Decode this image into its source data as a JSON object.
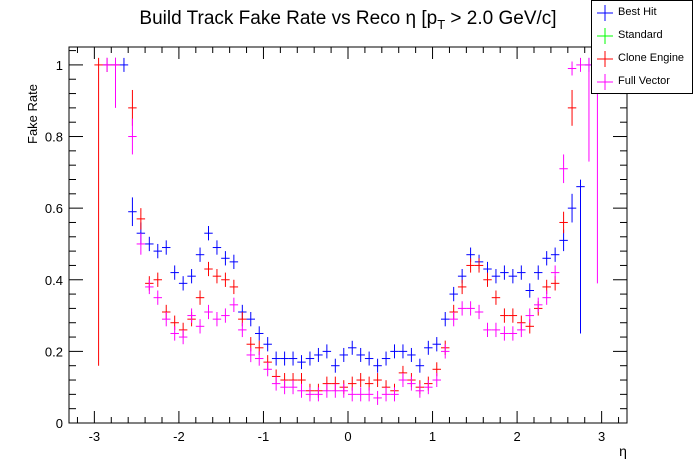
{
  "chart_data": {
    "type": "scatter",
    "title": "Build Track Fake Rate vs Reco η [p",
    "title_sub": "T",
    "title_tail": " > 2.0 GeV/c]",
    "xlabel": "η",
    "ylabel": "Fake Rate",
    "xlim": [
      -3.3,
      3.3
    ],
    "ylim": [
      0,
      1.05
    ],
    "x_ticks": [
      "-3",
      "-2",
      "-1",
      "0",
      "1",
      "2",
      "3"
    ],
    "y_ticks": [
      "0",
      "0.2",
      "0.4",
      "0.6",
      "0.8",
      "1"
    ],
    "grid": false,
    "legend_position": "top-right",
    "series": [
      {
        "name": "Best Hit",
        "color": "#0000ff",
        "x": [
          -2.85,
          -2.75,
          -2.65,
          -2.55,
          -2.45,
          -2.35,
          -2.25,
          -2.15,
          -2.05,
          -1.95,
          -1.85,
          -1.75,
          -1.65,
          -1.55,
          -1.45,
          -1.35,
          -1.25,
          -1.15,
          -1.05,
          -0.95,
          -0.85,
          -0.75,
          -0.65,
          -0.55,
          -0.45,
          -0.35,
          -0.25,
          -0.15,
          -0.05,
          0.05,
          0.15,
          0.25,
          0.35,
          0.45,
          0.55,
          0.65,
          0.75,
          0.85,
          0.95,
          1.05,
          1.15,
          1.25,
          1.35,
          1.45,
          1.55,
          1.65,
          1.75,
          1.85,
          1.95,
          2.05,
          2.15,
          2.25,
          2.35,
          2.45,
          2.55,
          2.65,
          2.75,
          2.85
        ],
        "y": [
          1.0,
          1.0,
          1.0,
          0.59,
          0.53,
          0.5,
          0.48,
          0.49,
          0.42,
          0.39,
          0.41,
          0.47,
          0.53,
          0.49,
          0.46,
          0.45,
          0.31,
          0.29,
          0.25,
          0.22,
          0.18,
          0.18,
          0.18,
          0.17,
          0.18,
          0.19,
          0.2,
          0.16,
          0.19,
          0.21,
          0.19,
          0.18,
          0.16,
          0.18,
          0.2,
          0.2,
          0.19,
          0.16,
          0.21,
          0.22,
          0.29,
          0.36,
          0.41,
          0.47,
          0.45,
          0.43,
          0.41,
          0.42,
          0.41,
          0.42,
          0.37,
          0.42,
          0.46,
          0.47,
          0.51,
          0.6,
          0.66,
          1.0
        ],
        "y_low_err": [
          0.0,
          0.0,
          0.0,
          0.04,
          0.03,
          0.02,
          0.02,
          0.02,
          0.02,
          0.02,
          0.02,
          0.02,
          0.02,
          0.02,
          0.02,
          0.02,
          0.02,
          0.02,
          0.02,
          0.02,
          0.01,
          0.01,
          0.01,
          0.01,
          0.01,
          0.01,
          0.01,
          0.01,
          0.01,
          0.01,
          0.01,
          0.01,
          0.01,
          0.01,
          0.01,
          0.01,
          0.01,
          0.01,
          0.01,
          0.02,
          0.02,
          0.02,
          0.02,
          0.02,
          0.02,
          0.02,
          0.02,
          0.02,
          0.02,
          0.02,
          0.02,
          0.02,
          0.02,
          0.02,
          0.03,
          0.04,
          0.41,
          0.0
        ],
        "y_high_err": [
          0.0,
          0.0,
          0.0,
          0.04,
          0.03,
          0.02,
          0.02,
          0.02,
          0.02,
          0.02,
          0.02,
          0.02,
          0.02,
          0.02,
          0.02,
          0.02,
          0.02,
          0.02,
          0.02,
          0.02,
          0.01,
          0.01,
          0.01,
          0.01,
          0.01,
          0.01,
          0.01,
          0.01,
          0.01,
          0.01,
          0.01,
          0.01,
          0.01,
          0.01,
          0.01,
          0.01,
          0.01,
          0.01,
          0.01,
          0.02,
          0.02,
          0.02,
          0.02,
          0.02,
          0.02,
          0.02,
          0.02,
          0.02,
          0.02,
          0.02,
          0.02,
          0.02,
          0.02,
          0.02,
          0.03,
          0.04,
          0.0,
          0.0
        ]
      },
      {
        "name": "Standard",
        "color": "#00ff00",
        "x": [],
        "y": []
      },
      {
        "name": "Clone Engine",
        "color": "#ff0000",
        "x": [
          -2.95,
          -2.85,
          -2.75,
          -2.55,
          -2.45,
          -2.35,
          -2.25,
          -2.15,
          -2.05,
          -1.95,
          -1.85,
          -1.75,
          -1.65,
          -1.55,
          -1.45,
          -1.35,
          -1.25,
          -1.15,
          -1.05,
          -0.95,
          -0.85,
          -0.75,
          -0.65,
          -0.55,
          -0.45,
          -0.35,
          -0.25,
          -0.15,
          -0.05,
          0.05,
          0.15,
          0.25,
          0.35,
          0.45,
          0.55,
          0.65,
          0.75,
          0.85,
          0.95,
          1.05,
          1.15,
          1.25,
          1.35,
          1.45,
          1.55,
          1.65,
          1.75,
          1.85,
          1.95,
          2.05,
          2.15,
          2.25,
          2.35,
          2.45,
          2.55,
          2.65
        ],
        "y": [
          1.0,
          1.0,
          1.0,
          0.88,
          0.57,
          0.39,
          0.4,
          0.31,
          0.28,
          0.26,
          0.29,
          0.35,
          0.43,
          0.41,
          0.4,
          0.38,
          0.29,
          0.22,
          0.21,
          0.17,
          0.13,
          0.12,
          0.12,
          0.12,
          0.09,
          0.09,
          0.11,
          0.11,
          0.1,
          0.11,
          0.12,
          0.11,
          0.12,
          0.1,
          0.09,
          0.14,
          0.12,
          0.1,
          0.11,
          0.15,
          0.21,
          0.31,
          0.38,
          0.44,
          0.44,
          0.4,
          0.35,
          0.3,
          0.3,
          0.28,
          0.27,
          0.32,
          0.38,
          0.39,
          0.56,
          0.88
        ],
        "y_low_err": [
          0.84,
          0.0,
          0.0,
          0.05,
          0.03,
          0.02,
          0.02,
          0.02,
          0.02,
          0.02,
          0.02,
          0.02,
          0.02,
          0.02,
          0.02,
          0.02,
          0.02,
          0.02,
          0.02,
          0.01,
          0.01,
          0.01,
          0.01,
          0.01,
          0.01,
          0.01,
          0.01,
          0.01,
          0.01,
          0.01,
          0.01,
          0.01,
          0.01,
          0.01,
          0.01,
          0.01,
          0.01,
          0.01,
          0.01,
          0.01,
          0.02,
          0.02,
          0.02,
          0.02,
          0.02,
          0.02,
          0.02,
          0.02,
          0.02,
          0.02,
          0.02,
          0.02,
          0.02,
          0.02,
          0.03,
          0.05
        ],
        "y_high_err": [
          0.0,
          0.0,
          0.0,
          0.05,
          0.03,
          0.02,
          0.02,
          0.02,
          0.02,
          0.02,
          0.02,
          0.02,
          0.02,
          0.02,
          0.02,
          0.02,
          0.02,
          0.02,
          0.02,
          0.01,
          0.01,
          0.01,
          0.01,
          0.01,
          0.01,
          0.01,
          0.01,
          0.01,
          0.01,
          0.01,
          0.01,
          0.01,
          0.01,
          0.01,
          0.01,
          0.01,
          0.01,
          0.01,
          0.01,
          0.01,
          0.02,
          0.02,
          0.02,
          0.02,
          0.02,
          0.02,
          0.02,
          0.02,
          0.02,
          0.02,
          0.02,
          0.02,
          0.02,
          0.02,
          0.03,
          0.05
        ]
      },
      {
        "name": "Full Vector",
        "color": "#ff00ff",
        "x": [
          -2.85,
          -2.75,
          -2.55,
          -2.45,
          -2.35,
          -2.25,
          -2.15,
          -2.05,
          -1.95,
          -1.85,
          -1.75,
          -1.65,
          -1.55,
          -1.45,
          -1.35,
          -1.25,
          -1.15,
          -1.05,
          -0.95,
          -0.85,
          -0.75,
          -0.65,
          -0.55,
          -0.45,
          -0.35,
          -0.25,
          -0.15,
          -0.05,
          0.05,
          0.15,
          0.25,
          0.35,
          0.45,
          0.55,
          0.65,
          0.75,
          0.85,
          0.95,
          1.05,
          1.15,
          1.25,
          1.35,
          1.45,
          1.55,
          1.65,
          1.75,
          1.85,
          1.95,
          2.05,
          2.15,
          2.25,
          2.35,
          2.45,
          2.55,
          2.65,
          2.75,
          2.85,
          2.95
        ],
        "y": [
          1.0,
          1.0,
          0.8,
          0.5,
          0.38,
          0.35,
          0.29,
          0.25,
          0.24,
          0.3,
          0.27,
          0.31,
          0.29,
          0.3,
          0.33,
          0.26,
          0.19,
          0.18,
          0.15,
          0.11,
          0.1,
          0.1,
          0.09,
          0.08,
          0.08,
          0.09,
          0.09,
          0.09,
          0.08,
          0.08,
          0.08,
          0.07,
          0.08,
          0.08,
          0.12,
          0.11,
          0.09,
          0.1,
          0.12,
          0.2,
          0.29,
          0.32,
          0.32,
          0.31,
          0.26,
          0.26,
          0.25,
          0.25,
          0.26,
          0.3,
          0.33,
          0.35,
          0.42,
          0.71,
          0.99,
          1.0,
          1.0,
          1.0
        ],
        "y_low_err": [
          0.0,
          0.12,
          0.05,
          0.03,
          0.02,
          0.02,
          0.02,
          0.02,
          0.02,
          0.02,
          0.02,
          0.02,
          0.02,
          0.02,
          0.02,
          0.02,
          0.02,
          0.02,
          0.01,
          0.01,
          0.01,
          0.01,
          0.01,
          0.01,
          0.01,
          0.01,
          0.01,
          0.01,
          0.01,
          0.01,
          0.01,
          0.01,
          0.01,
          0.01,
          0.01,
          0.01,
          0.01,
          0.01,
          0.01,
          0.02,
          0.02,
          0.02,
          0.02,
          0.02,
          0.02,
          0.02,
          0.02,
          0.02,
          0.02,
          0.02,
          0.02,
          0.02,
          0.02,
          0.04,
          0.01,
          0.0,
          0.27,
          0.61
        ],
        "y_high_err": [
          0.0,
          0.0,
          0.05,
          0.03,
          0.02,
          0.02,
          0.02,
          0.02,
          0.02,
          0.02,
          0.02,
          0.02,
          0.02,
          0.02,
          0.02,
          0.02,
          0.02,
          0.02,
          0.01,
          0.01,
          0.01,
          0.01,
          0.01,
          0.01,
          0.01,
          0.01,
          0.01,
          0.01,
          0.01,
          0.01,
          0.01,
          0.01,
          0.01,
          0.01,
          0.01,
          0.01,
          0.01,
          0.01,
          0.01,
          0.02,
          0.02,
          0.02,
          0.02,
          0.02,
          0.02,
          0.02,
          0.02,
          0.02,
          0.02,
          0.02,
          0.02,
          0.02,
          0.02,
          0.04,
          0.01,
          0.0,
          0.0,
          0.0
        ]
      }
    ]
  }
}
